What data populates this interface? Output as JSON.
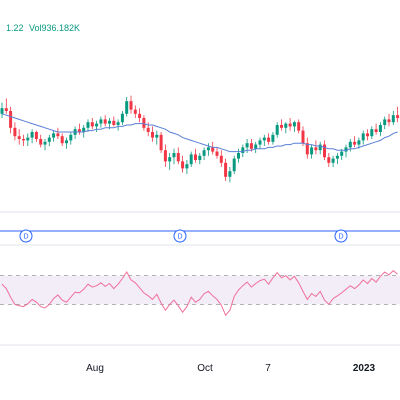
{
  "legend": {
    "change_text": "1.22",
    "volume_text": "Vol936.182K",
    "color": "#089981"
  },
  "chart_data": [
    {
      "type": "candlestick",
      "name": "price-panel",
      "up_color": "#089981",
      "down_color": "#f23645",
      "ma_color": "#5b7fd6",
      "ylim": [
        0,
        100
      ],
      "ohlc": [
        [
          58,
          66,
          55,
          62
        ],
        [
          62,
          69,
          58,
          60
        ],
        [
          60,
          63,
          44,
          48
        ],
        [
          48,
          52,
          39,
          42
        ],
        [
          42,
          47,
          36,
          40
        ],
        [
          40,
          43,
          35,
          39
        ],
        [
          39,
          44,
          35,
          41
        ],
        [
          41,
          47,
          37,
          45
        ],
        [
          45,
          46,
          38,
          40
        ],
        [
          40,
          43,
          34,
          36
        ],
        [
          36,
          40,
          32,
          38
        ],
        [
          38,
          43,
          35,
          41
        ],
        [
          41,
          46,
          38,
          44
        ],
        [
          44,
          48,
          40,
          42
        ],
        [
          42,
          44,
          35,
          37
        ],
        [
          37,
          41,
          33,
          39
        ],
        [
          39,
          45,
          36,
          43
        ],
        [
          43,
          49,
          40,
          47
        ],
        [
          47,
          51,
          43,
          45
        ],
        [
          45,
          50,
          41,
          48
        ],
        [
          48,
          54,
          45,
          52
        ],
        [
          52,
          55,
          47,
          49
        ],
        [
          49,
          53,
          45,
          51
        ],
        [
          51,
          56,
          48,
          54
        ],
        [
          54,
          57,
          49,
          51
        ],
        [
          51,
          55,
          47,
          53
        ],
        [
          53,
          56,
          49,
          50
        ],
        [
          50,
          54,
          46,
          52
        ],
        [
          52,
          60,
          50,
          58
        ],
        [
          58,
          70,
          56,
          67
        ],
        [
          67,
          71,
          58,
          61
        ],
        [
          61,
          64,
          55,
          58
        ],
        [
          58,
          62,
          52,
          55
        ],
        [
          55,
          57,
          46,
          48
        ],
        [
          48,
          52,
          42,
          45
        ],
        [
          45,
          49,
          38,
          41
        ],
        [
          41,
          46,
          36,
          43
        ],
        [
          43,
          45,
          30,
          32
        ],
        [
          32,
          36,
          20,
          24
        ],
        [
          24,
          30,
          18,
          27
        ],
        [
          27,
          33,
          22,
          30
        ],
        [
          30,
          34,
          22,
          24
        ],
        [
          24,
          28,
          16,
          19
        ],
        [
          19,
          25,
          15,
          22
        ],
        [
          22,
          31,
          20,
          29
        ],
        [
          29,
          33,
          23,
          25
        ],
        [
          25,
          30,
          22,
          28
        ],
        [
          28,
          34,
          25,
          32
        ],
        [
          32,
          37,
          28,
          34
        ],
        [
          34,
          38,
          29,
          31
        ],
        [
          31,
          34,
          26,
          28
        ],
        [
          28,
          32,
          20,
          23
        ],
        [
          23,
          26,
          10,
          13
        ],
        [
          13,
          20,
          9,
          17
        ],
        [
          17,
          28,
          15,
          26
        ],
        [
          26,
          33,
          23,
          30
        ],
        [
          30,
          36,
          27,
          34
        ],
        [
          34,
          40,
          30,
          37
        ],
        [
          37,
          40,
          31,
          33
        ],
        [
          33,
          38,
          30,
          36
        ],
        [
          36,
          41,
          33,
          39
        ],
        [
          39,
          43,
          35,
          41
        ],
        [
          41,
          44,
          36,
          38
        ],
        [
          38,
          45,
          36,
          43
        ],
        [
          43,
          52,
          41,
          50
        ],
        [
          50,
          54,
          46,
          48
        ],
        [
          48,
          52,
          44,
          51
        ],
        [
          51,
          55,
          46,
          49
        ],
        [
          49,
          53,
          45,
          52
        ],
        [
          52,
          54,
          44,
          46
        ],
        [
          46,
          49,
          35,
          37
        ],
        [
          37,
          41,
          26,
          29
        ],
        [
          29,
          36,
          26,
          34
        ],
        [
          34,
          39,
          29,
          32
        ],
        [
          32,
          38,
          29,
          36
        ],
        [
          36,
          39,
          25,
          27
        ],
        [
          27,
          30,
          20,
          23
        ],
        [
          23,
          28,
          20,
          26
        ],
        [
          26,
          30,
          22,
          28
        ],
        [
          28,
          33,
          25,
          31
        ],
        [
          31,
          36,
          27,
          34
        ],
        [
          34,
          40,
          31,
          38
        ],
        [
          38,
          42,
          34,
          36
        ],
        [
          36,
          41,
          33,
          39
        ],
        [
          39,
          46,
          36,
          44
        ],
        [
          44,
          47,
          39,
          42
        ],
        [
          42,
          49,
          40,
          47
        ],
        [
          47,
          51,
          43,
          45
        ],
        [
          45,
          52,
          42,
          50
        ],
        [
          50,
          56,
          47,
          54
        ],
        [
          54,
          58,
          49,
          52
        ],
        [
          52,
          60,
          50,
          57
        ],
        [
          57,
          63,
          52,
          55
        ]
      ],
      "ma": [
        58,
        57,
        56,
        55,
        54,
        53,
        52,
        51,
        50,
        49,
        48,
        47,
        46,
        45,
        45,
        45,
        45,
        45,
        45,
        45,
        46,
        46,
        47,
        47,
        48,
        48,
        48,
        49,
        49,
        50,
        50,
        51,
        51,
        51,
        50,
        50,
        49,
        48,
        47,
        45,
        44,
        43,
        41,
        40,
        39,
        38,
        37,
        36,
        35,
        34,
        34,
        33,
        32,
        31,
        31,
        31,
        31,
        32,
        32,
        33,
        33,
        33,
        34,
        34,
        35,
        35,
        36,
        36,
        37,
        37,
        37,
        36,
        36,
        35,
        35,
        34,
        33,
        33,
        32,
        32,
        32,
        33,
        33,
        34,
        35,
        36,
        37,
        38,
        39,
        41,
        42,
        44,
        45
      ]
    },
    {
      "type": "line",
      "name": "oscillator-panel",
      "color": "#f0709a",
      "ylim": [
        0,
        100
      ],
      "upper_band": 70,
      "lower_band": 30,
      "values": [
        58,
        52,
        40,
        30,
        28,
        27,
        31,
        37,
        33,
        27,
        25,
        30,
        38,
        43,
        36,
        33,
        40,
        47,
        46,
        51,
        58,
        54,
        56,
        60,
        55,
        59,
        52,
        58,
        66,
        75,
        64,
        60,
        53,
        46,
        42,
        37,
        44,
        32,
        22,
        30,
        36,
        28,
        19,
        27,
        40,
        33,
        37,
        45,
        48,
        42,
        37,
        29,
        15,
        22,
        41,
        50,
        56,
        61,
        54,
        59,
        63,
        65,
        58,
        67,
        74,
        67,
        70,
        64,
        69,
        60,
        48,
        37,
        45,
        41,
        48,
        36,
        30,
        38,
        42,
        46,
        51,
        56,
        52,
        57,
        64,
        59,
        66,
        61,
        69,
        75,
        71,
        77,
        72
      ]
    }
  ],
  "event_markers": [
    {
      "label": "D"
    },
    {
      "label": "D"
    },
    {
      "label": "D"
    }
  ],
  "x_axis": {
    "ticks": [
      {
        "label": "Aug",
        "bold": false
      },
      {
        "label": "Oct",
        "bold": false
      },
      {
        "label": "7",
        "bold": false
      },
      {
        "label": "2023",
        "bold": true
      }
    ]
  }
}
